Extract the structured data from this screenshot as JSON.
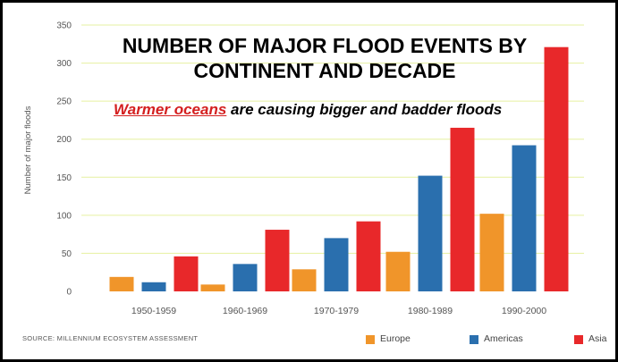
{
  "title_line1": "NUMBER OF MAJOR FLOOD EVENTS BY",
  "title_line2": "CONTINENT AND DECADE",
  "subtitle_highlight": "Warmer oceans",
  "subtitle_rest": " are causing bigger and badder floods",
  "source": "SOURCE: MILLENNIUM ECOSYSTEM ASSESSMENT",
  "colors": {
    "europe": "#f0952a",
    "americas": "#2a6fae",
    "asia": "#e8282a",
    "grid": "#e6f0a0",
    "axis_text": "#555555"
  },
  "chart_data": {
    "type": "bar",
    "title": "NUMBER OF MAJOR FLOOD EVENTS BY CONTINENT AND DECADE",
    "ylabel": "Number of major floods",
    "xlabel": "",
    "categories": [
      "1950-1959",
      "1960-1969",
      "1970-1979",
      "1980-1989",
      "1990-2000"
    ],
    "series": [
      {
        "name": "Europe",
        "color": "#f0952a",
        "values": [
          19,
          9,
          29,
          52,
          102
        ]
      },
      {
        "name": "Americas",
        "color": "#2a6fae",
        "values": [
          12,
          36,
          70,
          152,
          192
        ]
      },
      {
        "name": "Asia",
        "color": "#e8282a",
        "values": [
          46,
          81,
          92,
          215,
          321
        ]
      }
    ],
    "ylim": [
      0,
      350
    ],
    "yticks": [
      0,
      50,
      100,
      150,
      200,
      250,
      300,
      350
    ],
    "grid": true,
    "legend_position": "bottom-right"
  }
}
